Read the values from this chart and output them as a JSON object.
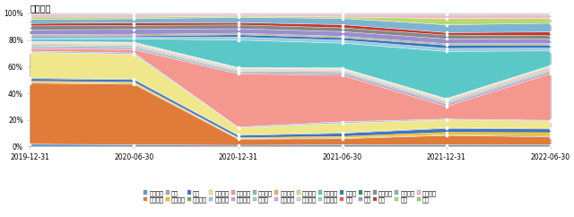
{
  "title": "行业占比",
  "x_labels": [
    "2019-12-31",
    "2020-06-30",
    "2020-12-31",
    "2021-06-30",
    "2021-12-31",
    "2022-06-30"
  ],
  "industries": [
    "农林牧渔",
    "基础化工",
    "钢铁",
    "有色金属",
    "电子",
    "家用电器",
    "食品饮料",
    "纺织服饰",
    "医药生物",
    "公用事业",
    "交通运输",
    "房地产",
    "商贸零售",
    "社会服务",
    "建筑材料",
    "建筑装饰",
    "电力设备",
    "国防军工",
    "计算机",
    "传媒",
    "通信",
    "银行",
    "非银金融",
    "汽车",
    "机械设备",
    "煤炭",
    "石油石化",
    "环保"
  ],
  "colors": [
    "#5b9bd5",
    "#e07b39",
    "#a5a5a5",
    "#ffc000",
    "#4472c4",
    "#70ad47",
    "#f0e68c",
    "#9dc3e6",
    "#f4978e",
    "#c8a2c8",
    "#7ebfb5",
    "#aec6cf",
    "#f9a86c",
    "#c9b1d0",
    "#e6d88a",
    "#d9d9d9",
    "#5bc8c8",
    "#9ecae1",
    "#2b7bba",
    "#e05c4b",
    "#2e8b57",
    "#9b8ecf",
    "#888888",
    "#c0392b",
    "#7fb3d3",
    "#b8d96e",
    "#f4b8d0",
    "#a0c878"
  ],
  "data": [
    [
      1.5,
      1.0,
      0.8,
      1.0,
      1.0,
      1.0
    ],
    [
      38.0,
      37.0,
      4.0,
      4.0,
      6.0,
      5.5
    ],
    [
      0.5,
      0.5,
      0.5,
      0.5,
      0.5,
      1.0
    ],
    [
      0.8,
      0.8,
      0.5,
      1.0,
      1.5,
      2.0
    ],
    [
      1.5,
      1.5,
      1.5,
      2.0,
      2.5,
      2.5
    ],
    [
      0.5,
      0.5,
      0.5,
      0.5,
      0.5,
      0.5
    ],
    [
      16.0,
      15.0,
      4.5,
      6.0,
      5.0,
      5.0
    ],
    [
      0.8,
      0.8,
      0.5,
      1.0,
      0.5,
      0.5
    ],
    [
      1.5,
      2.0,
      35.0,
      30.0,
      8.0,
      32.0
    ],
    [
      1.0,
      1.0,
      1.0,
      1.5,
      1.5,
      1.5
    ],
    [
      0.8,
      0.8,
      0.8,
      0.8,
      0.8,
      0.8
    ],
    [
      0.8,
      0.8,
      0.5,
      0.5,
      0.8,
      0.8
    ],
    [
      0.5,
      0.5,
      0.5,
      0.5,
      0.5,
      0.8
    ],
    [
      0.5,
      0.5,
      0.5,
      0.5,
      0.5,
      0.8
    ],
    [
      0.5,
      0.5,
      0.5,
      0.5,
      0.5,
      0.5
    ],
    [
      0.5,
      0.5,
      0.5,
      0.5,
      0.5,
      0.5
    ],
    [
      1.5,
      2.0,
      18.0,
      16.0,
      30.0,
      10.0
    ],
    [
      0.8,
      1.0,
      2.0,
      2.0,
      2.0,
      2.0
    ],
    [
      0.8,
      0.8,
      1.5,
      1.5,
      2.0,
      2.0
    ],
    [
      0.5,
      0.5,
      0.5,
      0.5,
      0.5,
      0.5
    ],
    [
      0.5,
      0.5,
      0.5,
      0.5,
      0.5,
      0.5
    ],
    [
      3.0,
      3.0,
      3.0,
      3.0,
      3.0,
      3.0
    ],
    [
      2.5,
      2.5,
      2.5,
      2.5,
      2.5,
      2.5
    ],
    [
      1.5,
      1.5,
      1.5,
      2.0,
      1.5,
      2.5
    ],
    [
      2.5,
      2.5,
      3.5,
      4.0,
      5.0,
      6.0
    ],
    [
      1.5,
      1.0,
      0.8,
      1.0,
      4.0,
      3.5
    ],
    [
      1.5,
      1.5,
      1.0,
      1.5,
      2.5,
      2.5
    ],
    [
      0.8,
      0.8,
      0.8,
      0.8,
      0.8,
      0.8
    ]
  ],
  "background_color": "#ffffff",
  "tick_fontsize": 5.5,
  "legend_fontsize": 4.8,
  "title_fontsize": 7
}
